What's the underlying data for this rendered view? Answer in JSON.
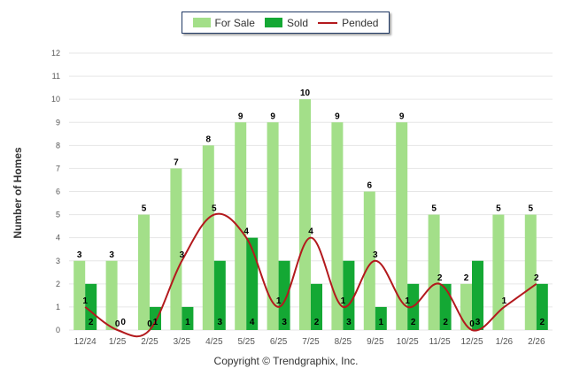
{
  "legend": {
    "for_sale": "For Sale",
    "sold": "Sold",
    "pended": "Pended"
  },
  "footer": {
    "copyright": "Copyright © Trendgraphix, Inc."
  },
  "colors": {
    "for_sale": "#a3df89",
    "sold": "#14a834",
    "pended": "#b3191d",
    "grid": "#e6e6e6",
    "axis_text": "#555555"
  },
  "chart_data": {
    "type": "bar",
    "title": "",
    "xlabel": "",
    "ylabel": "Number of Homes",
    "ylim": [
      0,
      12
    ],
    "yticks": [
      0,
      1,
      2,
      3,
      4,
      5,
      6,
      7,
      8,
      9,
      10,
      11,
      12
    ],
    "grid": true,
    "legend_position": "top-center",
    "categories": [
      "12/24",
      "1/25",
      "2/25",
      "3/25",
      "4/25",
      "5/25",
      "6/25",
      "7/25",
      "8/25",
      "9/25",
      "10/25",
      "11/25",
      "12/25",
      "1/26",
      "2/26"
    ],
    "series": [
      {
        "name": "For Sale",
        "type": "bar",
        "values": [
          3,
          3,
          5,
          7,
          8,
          9,
          9,
          10,
          9,
          6,
          9,
          5,
          2,
          5,
          5
        ]
      },
      {
        "name": "Sold",
        "type": "bar",
        "values": [
          2,
          0,
          1,
          1,
          3,
          4,
          3,
          2,
          3,
          1,
          2,
          2,
          3,
          null,
          2
        ]
      },
      {
        "name": "Pended",
        "type": "line",
        "values": [
          1,
          0,
          0,
          3,
          5,
          4,
          1,
          4,
          1,
          3,
          1,
          2,
          0,
          1,
          2
        ]
      }
    ]
  }
}
